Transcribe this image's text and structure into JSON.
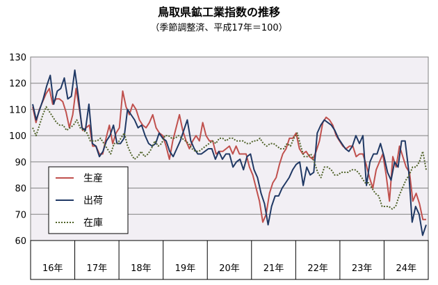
{
  "chart_data": {
    "type": "line",
    "title": "鳥取県鉱工業指数の推移",
    "subtitle": "（季節調整済、平成17年＝100）",
    "ylim": [
      60,
      130
    ],
    "yticks": [
      60,
      70,
      80,
      90,
      100,
      110,
      120,
      130
    ],
    "xcategories": [
      "16年",
      "17年",
      "18年",
      "19年",
      "20年",
      "21年",
      "22年",
      "23年",
      "24年"
    ],
    "grid": true,
    "legend": "bottom-left",
    "series": [
      {
        "name": "生産",
        "color": "#c0504d",
        "style": "solid",
        "values": [
          111,
          105,
          110,
          113,
          116,
          118,
          112,
          114,
          114,
          113,
          109,
          103,
          108,
          118,
          110,
          102,
          103,
          104,
          96,
          96,
          93,
          93,
          99,
          104,
          97,
          101,
          103,
          117,
          111,
          108,
          112,
          110,
          106,
          104,
          103,
          105,
          108,
          103,
          101,
          100,
          96,
          91,
          98,
          103,
          108,
          102,
          98,
          95,
          98,
          100,
          98,
          105,
          100,
          98,
          98,
          93,
          94,
          94,
          95,
          96,
          93,
          96,
          93,
          93,
          93,
          88,
          85,
          80,
          75,
          67,
          70,
          78,
          82,
          84,
          89,
          93,
          95,
          99,
          99,
          101,
          95,
          93,
          94,
          92,
          91,
          94,
          98,
          105,
          107,
          106,
          104,
          100,
          98,
          96,
          95,
          96,
          96,
          92,
          93,
          93,
          89,
          84,
          80,
          87,
          90,
          93,
          85,
          75,
          92,
          88,
          96,
          92,
          88,
          86,
          75,
          78,
          74,
          68,
          68
        ]
      },
      {
        "name": "出荷",
        "color": "#1f3864",
        "style": "solid",
        "values": [
          112,
          106,
          110,
          114,
          119,
          123,
          112,
          117,
          118,
          122,
          114,
          115,
          125,
          115,
          103,
          102,
          112,
          97,
          96,
          92,
          94,
          98,
          100,
          104,
          97,
          97,
          99,
          110,
          108,
          106,
          103,
          104,
          100,
          97,
          96,
          97,
          101,
          99,
          98,
          94,
          92,
          95,
          98,
          102,
          106,
          98,
          95,
          93,
          93,
          94,
          95,
          95,
          91,
          94,
          91,
          93,
          93,
          88,
          90,
          91,
          87,
          92,
          93,
          87,
          84,
          78,
          74,
          66,
          73,
          77,
          77,
          80,
          82,
          84,
          87,
          89,
          90,
          81,
          88,
          85,
          86,
          101,
          104,
          106,
          105,
          104,
          102,
          99,
          97,
          95,
          94,
          96,
          100,
          97,
          100,
          81,
          90,
          93,
          93,
          97,
          92,
          86,
          83,
          90,
          88,
          98,
          98,
          87,
          67,
          73,
          70,
          62,
          66
        ]
      },
      {
        "name": "在庫",
        "color": "#4f6228",
        "style": "dotted",
        "values": [
          103,
          100,
          104,
          108,
          111,
          109,
          107,
          105,
          104,
          104,
          102,
          103,
          104,
          106,
          103,
          102,
          101,
          98,
          98,
          98,
          99,
          97,
          95,
          93,
          97,
          97,
          99,
          101,
          96,
          93,
          91,
          92,
          94,
          92,
          93,
          95,
          98,
          96,
          97,
          100,
          100,
          99,
          99,
          100,
          99,
          98,
          97,
          95,
          94,
          94,
          95,
          96,
          97,
          98,
          97,
          99,
          99,
          98,
          99,
          99,
          98,
          98,
          98,
          97,
          97,
          98,
          98,
          99,
          97,
          96,
          97,
          97,
          96,
          95,
          95,
          97,
          96,
          99,
          101,
          96,
          92,
          92,
          93,
          90,
          86,
          84,
          88,
          88,
          87,
          85,
          85,
          86,
          86,
          86,
          87,
          87,
          86,
          84,
          82,
          82,
          80,
          78,
          77,
          73,
          73,
          73,
          72,
          73,
          77,
          80,
          83,
          85,
          88,
          88,
          90,
          94,
          87
        ]
      }
    ]
  }
}
